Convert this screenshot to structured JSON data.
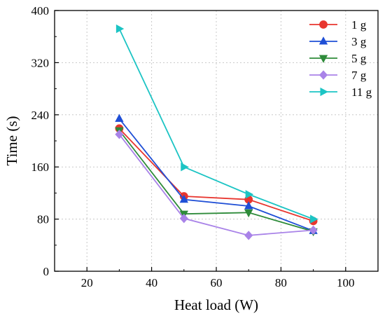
{
  "chart_data": {
    "type": "line",
    "title": "",
    "xlabel": "Heat load (W)",
    "ylabel": "Time (s)",
    "xlim": [
      10,
      110
    ],
    "ylim": [
      0,
      400
    ],
    "x_ticks": [
      20,
      40,
      60,
      80,
      100
    ],
    "y_ticks": [
      0,
      80,
      160,
      240,
      320,
      400
    ],
    "x_tick_labels": [
      "20",
      "40",
      "60",
      "80",
      "100"
    ],
    "y_tick_labels": [
      "0",
      "80",
      "160",
      "240",
      "320",
      "400"
    ],
    "grid": true,
    "legend_position": "top-right",
    "x": [
      30,
      50,
      70,
      90
    ],
    "series": [
      {
        "name": "1 g",
        "color": "#e8362f",
        "marker": "circle",
        "values": [
          219,
          115,
          110,
          77
        ]
      },
      {
        "name": "3 g",
        "color": "#1f4fd6",
        "marker": "triangle-up",
        "values": [
          234,
          110,
          100,
          62
        ]
      },
      {
        "name": "5 g",
        "color": "#2e8b3a",
        "marker": "triangle-down",
        "values": [
          216,
          88,
          90,
          61
        ]
      },
      {
        "name": "7 g",
        "color": "#a983e8",
        "marker": "diamond",
        "values": [
          210,
          81,
          55,
          63
        ]
      },
      {
        "name": "11 g",
        "color": "#1cc4c4",
        "marker": "triangle-right",
        "values": [
          372,
          160,
          118,
          80
        ]
      }
    ]
  }
}
